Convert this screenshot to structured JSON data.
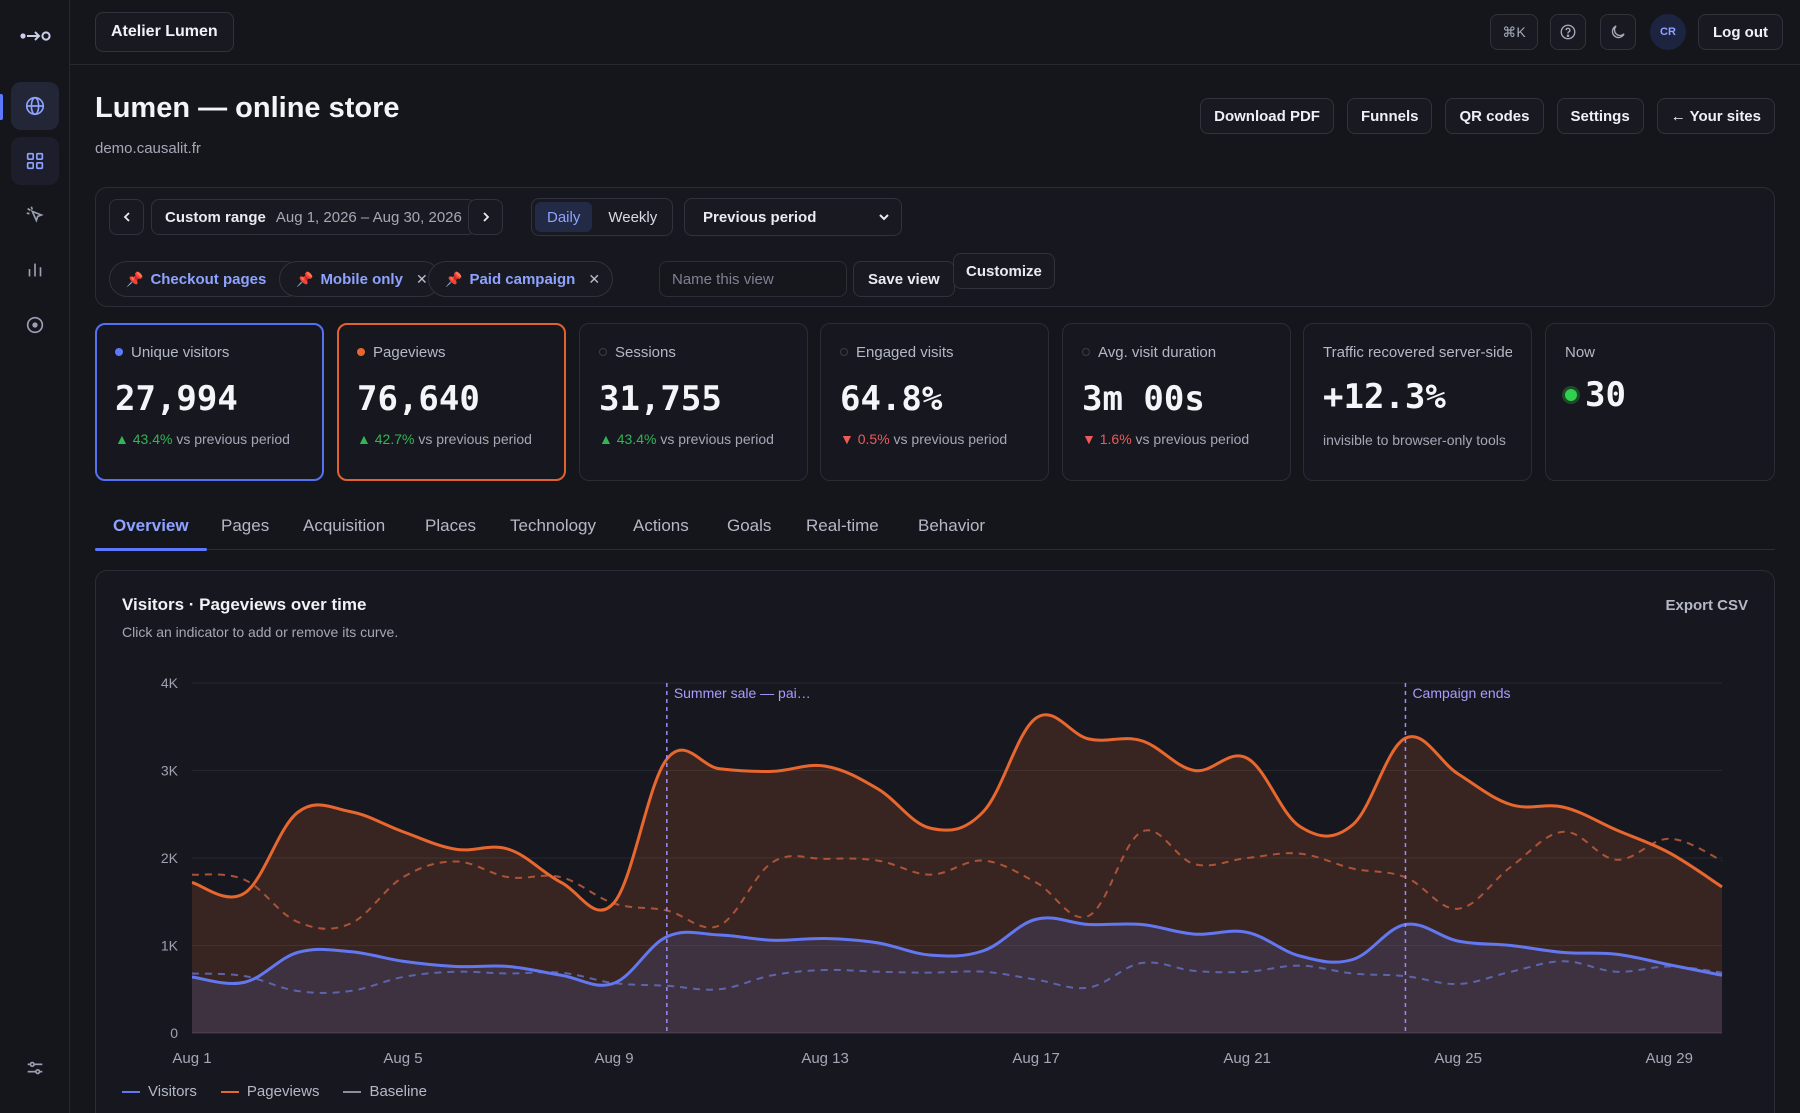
{
  "topbar": {
    "workspace": "Atelier Lumen",
    "shortcut": "⌘K",
    "avatar": "CR",
    "logout": "Log out"
  },
  "header": {
    "title": "Lumen — online store",
    "domain": "demo.causalit.fr",
    "buttons": [
      "Download PDF",
      "Funnels",
      "QR codes",
      "Settings",
      "← Your sites"
    ]
  },
  "filters": {
    "range_label": "Custom range",
    "range_value": "Aug 1, 2026 – Aug 30, 2026",
    "granularity": [
      "Daily",
      "Weekly"
    ],
    "compare": "Previous period",
    "chips": [
      "Checkout pages",
      "Mobile only",
      "Paid campaign"
    ],
    "view_placeholder": "Name this view",
    "save": "Save view",
    "customize": "Customize"
  },
  "kpis": [
    {
      "label": "Unique visitors",
      "value": "27,994",
      "delta": "▲ 43.4%",
      "dir": "up",
      "suffix": "vs previous period",
      "dot": "#5d78ff"
    },
    {
      "label": "Pageviews",
      "value": "76,640",
      "delta": "▲ 42.7%",
      "dir": "up",
      "suffix": "vs previous period",
      "dot": "#e8672f"
    },
    {
      "label": "Sessions",
      "value": "31,755",
      "delta": "▲ 43.4%",
      "dir": "up",
      "suffix": "vs previous period",
      "dot": "none"
    },
    {
      "label": "Engaged visits",
      "value": "64.8%",
      "delta": "▼ 0.5%",
      "dir": "down",
      "suffix": "vs previous period",
      "dot": "none"
    },
    {
      "label": "Avg. visit duration",
      "value": "3m 00s",
      "delta": "▼ 1.6%",
      "dir": "down",
      "suffix": "vs previous period",
      "dot": "none"
    }
  ],
  "recovered": {
    "label": "Traffic recovered server-side",
    "value": "+12.3%",
    "sub": "invisible to browser-only tools"
  },
  "now": {
    "label": "Now",
    "value": "30"
  },
  "tabs": [
    "Overview",
    "Pages",
    "Acquisition",
    "Places",
    "Technology",
    "Actions",
    "Goals",
    "Real-time",
    "Behavior"
  ],
  "chart": {
    "title": "Visitors · Pageviews over time",
    "subtitle": "Click an indicator to add or remove its curve.",
    "export": "Export CSV",
    "legend": [
      "Visitors",
      "Pageviews",
      "Baseline"
    ]
  },
  "chart_data": {
    "type": "area",
    "ylim": [
      0,
      4000
    ],
    "yticks": [
      "0",
      "1K",
      "2K",
      "3K",
      "4K"
    ],
    "xticks": [
      {
        "label": "Aug 1",
        "day": 1
      },
      {
        "label": "Aug 5",
        "day": 5
      },
      {
        "label": "Aug 9",
        "day": 9
      },
      {
        "label": "Aug 13",
        "day": 13
      },
      {
        "label": "Aug 17",
        "day": 17
      },
      {
        "label": "Aug 21",
        "day": 21
      },
      {
        "label": "Aug 25",
        "day": 25
      },
      {
        "label": "Aug 29",
        "day": 29
      }
    ],
    "x": [
      1,
      2,
      3,
      4,
      5,
      6,
      7,
      8,
      9,
      10,
      11,
      12,
      13,
      14,
      15,
      16,
      17,
      18,
      19,
      20,
      21,
      22,
      23,
      24,
      25,
      26,
      27,
      28,
      29,
      30
    ],
    "annotations": [
      {
        "day": 10,
        "label": "Summer sale — pai…"
      },
      {
        "day": 24,
        "label": "Campaign ends"
      }
    ],
    "series": [
      {
        "name": "Pageviews",
        "color": "#e8672f",
        "values": [
          1720,
          1600,
          2520,
          2530,
          2300,
          2100,
          2100,
          1720,
          1490,
          3130,
          3020,
          2990,
          3050,
          2790,
          2340,
          2530,
          3600,
          3360,
          3340,
          3000,
          3140,
          2360,
          2380,
          3370,
          2960,
          2610,
          2580,
          2320,
          2060,
          1670
        ]
      },
      {
        "name": "Visitors",
        "color": "#6378f0",
        "values": [
          640,
          580,
          920,
          930,
          820,
          760,
          760,
          660,
          570,
          1100,
          1120,
          1060,
          1080,
          1030,
          890,
          940,
          1300,
          1240,
          1240,
          1130,
          1150,
          880,
          840,
          1240,
          1050,
          1000,
          920,
          900,
          780,
          660
        ]
      },
      {
        "name": "Pageviews baseline",
        "color": "#b9593a",
        "dashed": true,
        "values": [
          1810,
          1750,
          1270,
          1250,
          1780,
          1960,
          1780,
          1780,
          1480,
          1400,
          1230,
          1950,
          1990,
          1970,
          1810,
          1970,
          1720,
          1340,
          2300,
          1930,
          2000,
          2050,
          1880,
          1780,
          1420,
          1900,
          2300,
          1980,
          2220,
          1970
        ]
      },
      {
        "name": "Visitors baseline",
        "color": "#5f6bb8",
        "dashed": true,
        "values": [
          680,
          650,
          480,
          480,
          640,
          700,
          680,
          690,
          570,
          540,
          500,
          660,
          720,
          700,
          690,
          700,
          610,
          520,
          800,
          710,
          700,
          770,
          680,
          650,
          560,
          700,
          820,
          700,
          760,
          690
        ]
      }
    ]
  }
}
